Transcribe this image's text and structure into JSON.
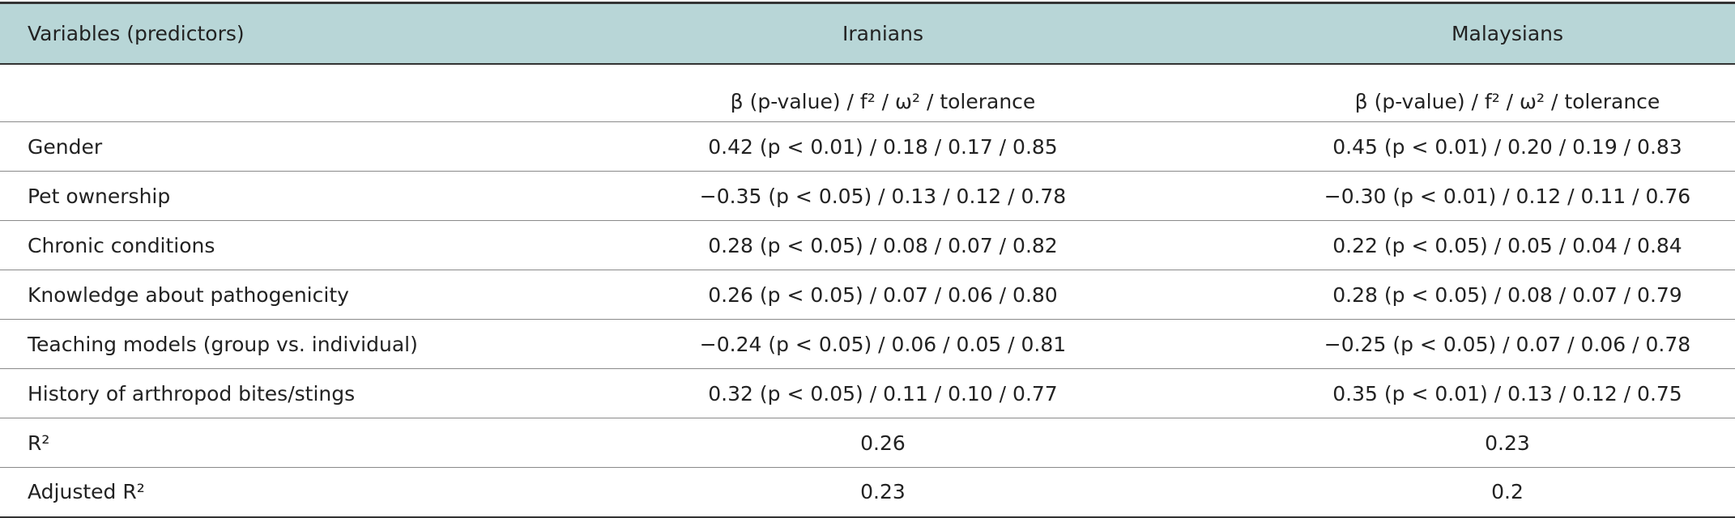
{
  "table": {
    "header": [
      "Variables (predictors)",
      "Iranians",
      "Malaysians"
    ],
    "subheader": [
      "β (p-value) / f² / ω² / tolerance",
      "β (p-value) / f² / ω² / tolerance"
    ],
    "rows": [
      [
        "Gender",
        "0.42 (p < 0.01) / 0.18 / 0.17 / 0.85",
        "0.45 (p < 0.01) / 0.20 / 0.19 / 0.83"
      ],
      [
        "Pet ownership",
        "−0.35 (p < 0.05) / 0.13 / 0.12 / 0.78",
        "−0.30 (p < 0.01) / 0.12 / 0.11 / 0.76"
      ],
      [
        "Chronic conditions",
        "0.28 (p < 0.05) / 0.08 / 0.07 / 0.82",
        "0.22 (p < 0.05) / 0.05 / 0.04 / 0.84"
      ],
      [
        "Knowledge about pathogenicity",
        "0.26 (p < 0.05) / 0.07 / 0.06 / 0.80",
        "0.28 (p < 0.05) / 0.08 / 0.07 / 0.79"
      ],
      [
        "Teaching models (group vs. individual)",
        "−0.24 (p < 0.05) / 0.06 / 0.05 / 0.81",
        "−0.25 (p < 0.05) / 0.07 / 0.06 / 0.78"
      ],
      [
        "History of arthropod bites/stings",
        "0.32 (p < 0.05) / 0.11 / 0.10 / 0.77",
        "0.35 (p < 0.01) / 0.13 / 0.12 / 0.75"
      ],
      [
        "R²",
        "0.26",
        "0.23"
      ],
      [
        "Adjusted R²",
        "0.23",
        "0.2"
      ]
    ]
  }
}
